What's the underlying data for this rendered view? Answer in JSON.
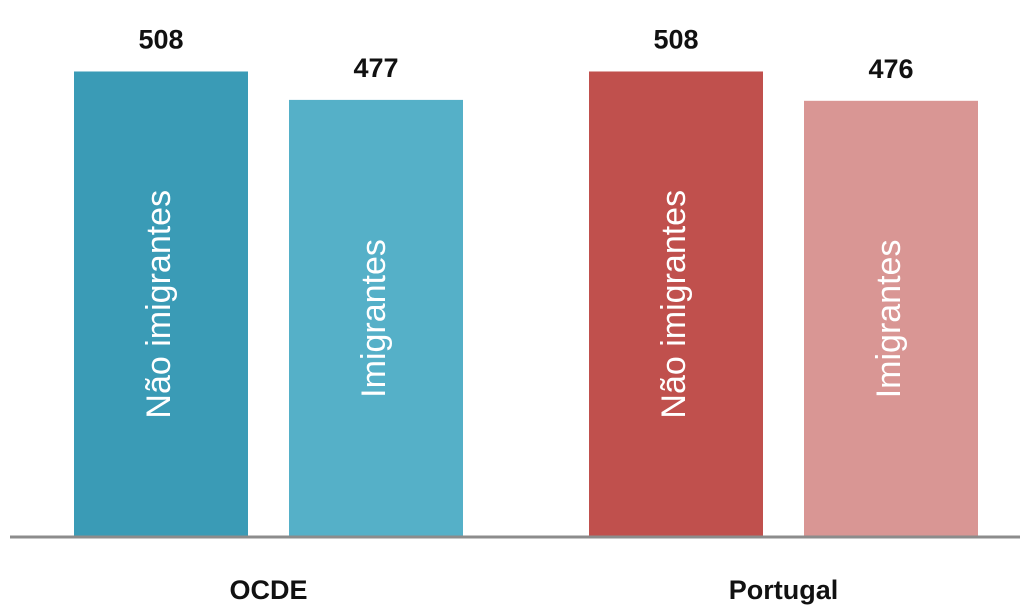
{
  "chart_data": {
    "type": "bar",
    "categories": [
      "OCDE",
      "Portugal"
    ],
    "series": [
      {
        "name": "Não imigrantes",
        "colors": [
          "#3a9bb6",
          "#c0504d"
        ],
        "values": [
          508,
          508
        ]
      },
      {
        "name": "Imigrantes",
        "colors": [
          "#55b0c8",
          "#d99694"
        ],
        "values": [
          477,
          476
        ]
      }
    ],
    "ylim": [
      0,
      550
    ]
  }
}
